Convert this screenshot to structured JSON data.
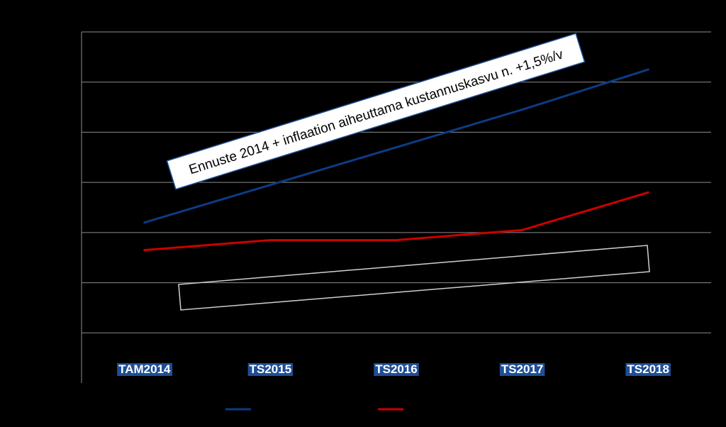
{
  "chart_data": {
    "type": "line",
    "categories": [
      "TAM2014",
      "TS2015",
      "TS2016",
      "TS2017",
      "TS2018"
    ],
    "ylim": [
      0,
      7
    ],
    "grid": true,
    "legend_position": "bottom",
    "series": [
      {
        "color": "#0b3c85",
        "values": [
          3.2,
          3.95,
          4.7,
          5.45,
          6.25
        ]
      },
      {
        "color": "#cc0000",
        "values": [
          2.65,
          2.85,
          2.85,
          3.05,
          3.8
        ]
      }
    ],
    "annotations": {
      "callout_text": "Ennuste 2014 + inflaation aiheuttama kustannuskasvu n. +1,5%/v"
    },
    "colors": {
      "background": "#000000",
      "category_label_bg": "#1f4e96",
      "gridline": "#8c8c8c",
      "callout_bg": "#ffffff",
      "callout_border": "#1f4e96"
    }
  }
}
